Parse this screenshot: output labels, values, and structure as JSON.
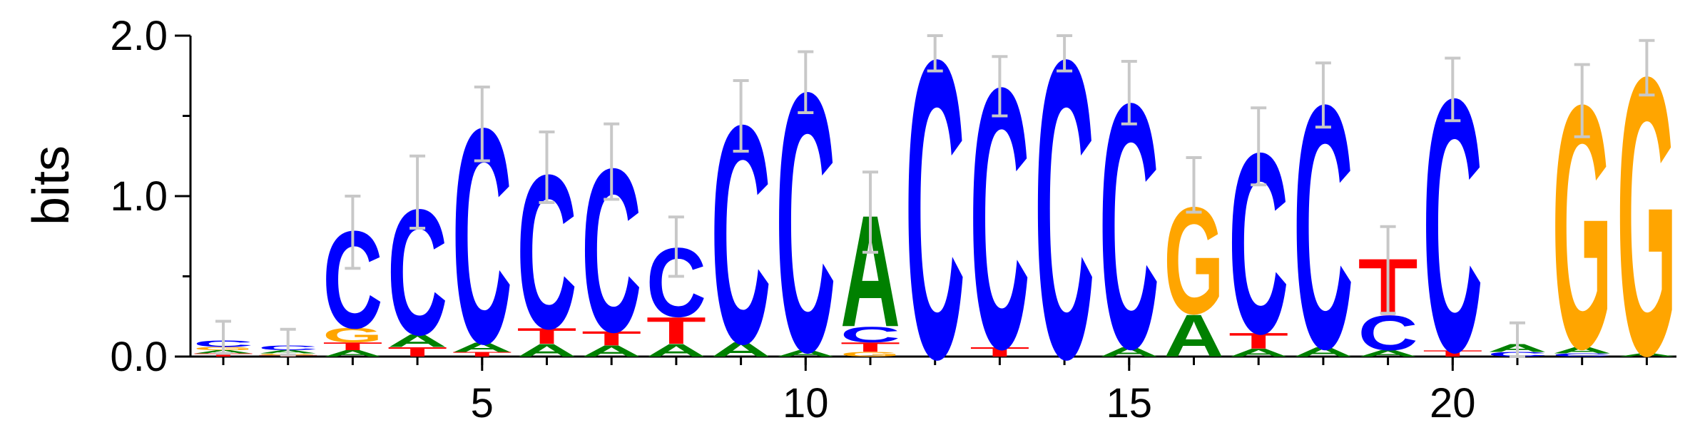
{
  "chart_data": {
    "type": "sequence-logo",
    "ylabel": "bits",
    "ylim": [
      0,
      2.0
    ],
    "yticks": [
      "0.0",
      "1.0",
      "2.0"
    ],
    "x_positions": 23,
    "xtick_labels": [
      "5",
      "10",
      "15",
      "20"
    ],
    "xtick_values": [
      5,
      10,
      15,
      20
    ],
    "colors": {
      "A": "#008000",
      "C": "#0000ff",
      "G": "#ffa500",
      "T": "#ff0000"
    },
    "positions": [
      {
        "pos": 1,
        "stack": [
          [
            "T",
            0.02
          ],
          [
            "A",
            0.02
          ],
          [
            "G",
            0.02
          ],
          [
            "C",
            0.04
          ]
        ],
        "err": [
          0.02,
          0.22
        ]
      },
      {
        "pos": 2,
        "stack": [
          [
            "T",
            0.01
          ],
          [
            "G",
            0.01
          ],
          [
            "A",
            0.02
          ],
          [
            "C",
            0.03
          ]
        ],
        "err": [
          0.01,
          0.17
        ]
      },
      {
        "pos": 3,
        "stack": [
          [
            "A",
            0.04
          ],
          [
            "T",
            0.05
          ],
          [
            "G",
            0.09
          ],
          [
            "C",
            0.62
          ]
        ],
        "err": [
          0.55,
          1.0
        ]
      },
      {
        "pos": 4,
        "stack": [
          [
            "T",
            0.06
          ],
          [
            "A",
            0.08
          ],
          [
            "C",
            0.8
          ]
        ],
        "err": [
          0.8,
          1.25
        ]
      },
      {
        "pos": 5,
        "stack": [
          [
            "T",
            0.03
          ],
          [
            "A",
            0.06
          ],
          [
            "C",
            1.37
          ]
        ],
        "err": [
          1.22,
          1.68
        ]
      },
      {
        "pos": 6,
        "stack": [
          [
            "A",
            0.08
          ],
          [
            "T",
            0.1
          ],
          [
            "C",
            0.98
          ]
        ],
        "err": [
          0.96,
          1.4
        ]
      },
      {
        "pos": 7,
        "stack": [
          [
            "A",
            0.07
          ],
          [
            "T",
            0.09
          ],
          [
            "C",
            1.04
          ]
        ],
        "err": [
          0.98,
          1.45
        ]
      },
      {
        "pos": 8,
        "stack": [
          [
            "A",
            0.08
          ],
          [
            "T",
            0.17
          ],
          [
            "C",
            0.44
          ]
        ],
        "err": [
          0.5,
          0.87
        ]
      },
      {
        "pos": 9,
        "stack": [
          [
            "A",
            0.09
          ],
          [
            "C",
            1.39
          ]
        ],
        "err": [
          1.28,
          1.72
        ]
      },
      {
        "pos": 10,
        "stack": [
          [
            "A",
            0.04
          ],
          [
            "C",
            1.65
          ]
        ],
        "err": [
          1.52,
          1.9
        ]
      },
      {
        "pos": 11,
        "stack": [
          [
            "G",
            0.03
          ],
          [
            "T",
            0.06
          ],
          [
            "C",
            0.1
          ],
          [
            "A",
            0.71
          ]
        ],
        "err": [
          0.65,
          1.15
        ]
      },
      {
        "pos": 12,
        "stack": [
          [
            "C",
            1.9
          ]
        ],
        "err": [
          1.78,
          2.0
        ]
      },
      {
        "pos": 13,
        "stack": [
          [
            "T",
            0.06
          ],
          [
            "C",
            1.66
          ]
        ],
        "err": [
          1.5,
          1.87
        ]
      },
      {
        "pos": 14,
        "stack": [
          [
            "C",
            1.9
          ]
        ],
        "err": [
          1.78,
          2.0
        ]
      },
      {
        "pos": 15,
        "stack": [
          [
            "A",
            0.06
          ],
          [
            "C",
            1.56
          ]
        ],
        "err": [
          1.45,
          1.84
        ]
      },
      {
        "pos": 16,
        "stack": [
          [
            "A",
            0.27
          ],
          [
            "G",
            0.68
          ]
        ],
        "err": [
          0.9,
          1.24
        ]
      },
      {
        "pos": 17,
        "stack": [
          [
            "A",
            0.05
          ],
          [
            "T",
            0.1
          ],
          [
            "C",
            1.15
          ]
        ],
        "err": [
          1.07,
          1.55
        ]
      },
      {
        "pos": 18,
        "stack": [
          [
            "A",
            0.06
          ],
          [
            "C",
            1.55
          ]
        ],
        "err": [
          1.43,
          1.83
        ]
      },
      {
        "pos": 19,
        "stack": [
          [
            "A",
            0.04
          ],
          [
            "C",
            0.22
          ],
          [
            "T",
            0.36
          ]
        ],
        "err": [
          0.27,
          0.81
        ]
      },
      {
        "pos": 20,
        "stack": [
          [
            "T",
            0.04
          ],
          [
            "C",
            1.61
          ]
        ],
        "err": [
          1.47,
          1.86
        ]
      },
      {
        "pos": 21,
        "stack": [
          [
            "C",
            0.03
          ],
          [
            "A",
            0.05
          ]
        ],
        "err": [
          0.0,
          0.21
        ]
      },
      {
        "pos": 22,
        "stack": [
          [
            "C",
            0.02
          ],
          [
            "A",
            0.04
          ],
          [
            "G",
            1.55
          ]
        ],
        "err": [
          1.37,
          1.82
        ]
      },
      {
        "pos": 23,
        "stack": [
          [
            "A",
            0.02
          ],
          [
            "G",
            1.77
          ]
        ],
        "err": [
          1.63,
          1.97
        ]
      }
    ]
  }
}
